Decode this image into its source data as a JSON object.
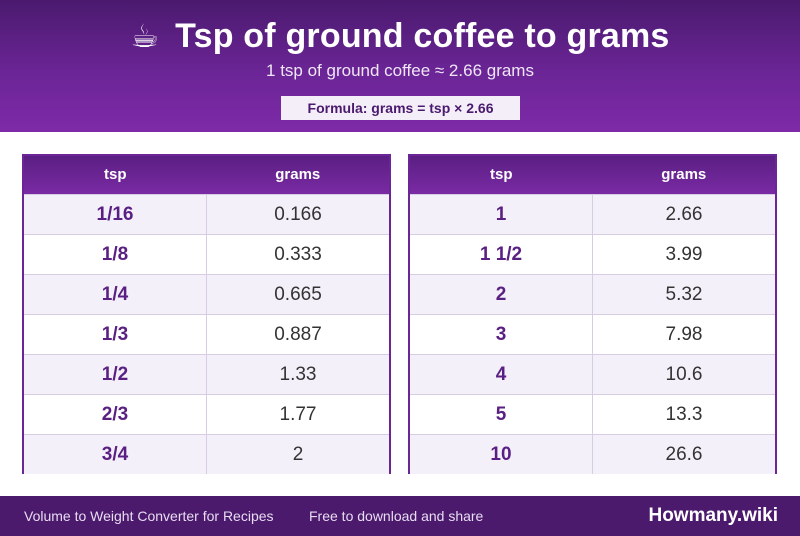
{
  "header": {
    "icon": "coffee-cup-icon",
    "icon_glyph": "☕",
    "title": "Tsp of ground coffee to grams",
    "subtitle": "1 tsp of ground coffee ≈ 2.66 grams",
    "formula": "Formula: grams = tsp × 2.66"
  },
  "tables": [
    {
      "headers": {
        "tsp": "tsp",
        "grams": "grams"
      },
      "rows": [
        {
          "tsp": "1/16",
          "grams": "0.166"
        },
        {
          "tsp": "1/8",
          "grams": "0.333"
        },
        {
          "tsp": "1/4",
          "grams": "0.665"
        },
        {
          "tsp": "1/3",
          "grams": "0.887"
        },
        {
          "tsp": "1/2",
          "grams": "1.33"
        },
        {
          "tsp": "2/3",
          "grams": "1.77"
        },
        {
          "tsp": "3/4",
          "grams": "2"
        }
      ]
    },
    {
      "headers": {
        "tsp": "tsp",
        "grams": "grams"
      },
      "rows": [
        {
          "tsp": "1",
          "grams": "2.66"
        },
        {
          "tsp": "1 1/2",
          "grams": "3.99"
        },
        {
          "tsp": "2",
          "grams": "5.32"
        },
        {
          "tsp": "3",
          "grams": "7.98"
        },
        {
          "tsp": "4",
          "grams": "10.6"
        },
        {
          "tsp": "5",
          "grams": "13.3"
        },
        {
          "tsp": "10",
          "grams": "26.6"
        }
      ]
    }
  ],
  "footer": {
    "left": "Volume to Weight Converter for Recipes",
    "middle": "Free to download and share",
    "brand": "Howmany.wiki"
  },
  "colors": {
    "accent": "#6b2596",
    "header_dark": "#4a1a6e",
    "row_alt": "#f4f0fa"
  }
}
